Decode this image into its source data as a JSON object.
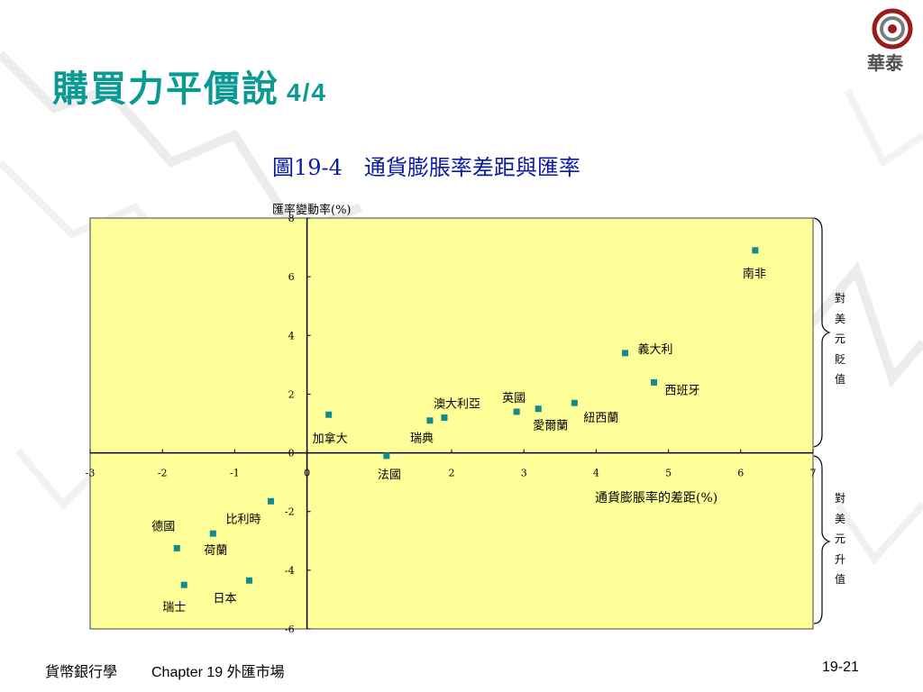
{
  "slide": {
    "title": "購買力平價說",
    "title_page": "4/4",
    "figure_caption": "圖19-4　通貨膨脹率差距與匯率",
    "logo_text": "華泰",
    "footer_left": "貨幣銀行學",
    "footer_chapter": "Chapter 19 外匯市場",
    "footer_page": "19-21",
    "side_label_top": "對美元貶值",
    "side_label_bottom": "對美元升值"
  },
  "colors": {
    "title": "#0a9a93",
    "caption": "#0a1aa0",
    "plot_background": "#ffff99",
    "marker": "#118a8a"
  },
  "chart_data": {
    "type": "scatter",
    "title": "",
    "xlabel": "通貨膨脹率的差距(%)",
    "ylabel": "匯率變動率(%)",
    "xlim": [
      -3,
      7
    ],
    "ylim": [
      -6,
      8
    ],
    "xticks": [
      -3,
      -2,
      -1,
      0,
      2,
      3,
      4,
      5,
      6,
      7
    ],
    "yticks": [
      8,
      6,
      4,
      2,
      0,
      -2,
      -4,
      -6
    ],
    "grid": false,
    "points": [
      {
        "label": "南非",
        "x": 6.2,
        "y": 6.9
      },
      {
        "label": "義大利",
        "x": 4.4,
        "y": 3.4
      },
      {
        "label": "西班牙",
        "x": 4.8,
        "y": 2.4
      },
      {
        "label": "紐西蘭",
        "x": 3.7,
        "y": 1.7
      },
      {
        "label": "愛爾蘭",
        "x": 3.2,
        "y": 1.5
      },
      {
        "label": "英國",
        "x": 2.9,
        "y": 1.4
      },
      {
        "label": "澳大利亞",
        "x": 1.9,
        "y": 1.2
      },
      {
        "label": "瑞典",
        "x": 1.7,
        "y": 1.1
      },
      {
        "label": "加拿大",
        "x": 0.3,
        "y": 1.3
      },
      {
        "label": "法國",
        "x": 1.1,
        "y": -0.1
      },
      {
        "label": "比利時",
        "x": -0.5,
        "y": -1.65
      },
      {
        "label": "荷蘭",
        "x": -1.3,
        "y": -2.75
      },
      {
        "label": "德國",
        "x": -1.8,
        "y": -3.25
      },
      {
        "label": "日本",
        "x": -0.8,
        "y": -4.35
      },
      {
        "label": "瑞士",
        "x": -1.7,
        "y": -4.5
      }
    ]
  }
}
